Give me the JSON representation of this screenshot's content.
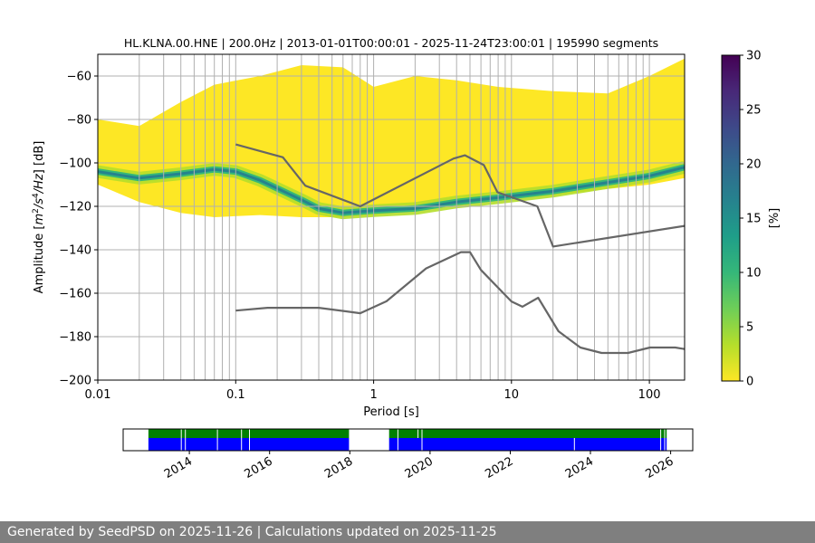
{
  "chart_data": [
    {
      "type": "heatmap",
      "subtype": "probabilistic-power-spectral-density",
      "title": "HL.KLNA.00.HNE | 200.0Hz | 2013-01-01T00:00:01 - 2025-11-24T23:00:01 | 195990 segments",
      "xlabel": "Period [s]",
      "ylabel_parts": [
        "Amplitude [",
        "m",
        "2",
        "/",
        "s",
        "4",
        "/",
        "Hz",
        "] [dB]"
      ],
      "xscale": "log",
      "xlim": [
        0.01,
        180
      ],
      "ylim": [
        -200,
        -50
      ],
      "x_ticks": [
        0.01,
        0.1,
        1,
        10,
        100
      ],
      "x_tick_labels": [
        "0.01",
        "0.1",
        "1",
        "10",
        "100"
      ],
      "y_ticks": [
        -200,
        -180,
        -160,
        -140,
        -120,
        -100,
        -80,
        -60
      ],
      "y_tick_labels": [
        "−200",
        "−180",
        "−160",
        "−140",
        "−120",
        "−100",
        "−80",
        "−60"
      ],
      "grid": true,
      "density_bands": [
        {
          "name": "upper-envelope",
          "x": [
            0.01,
            0.02,
            0.04,
            0.07,
            0.15,
            0.3,
            0.6,
            1,
            2,
            4,
            8,
            20,
            50,
            100,
            180
          ],
          "y": [
            -80,
            -83,
            -72,
            -64,
            -60,
            -55,
            -56,
            -65,
            -60,
            -62,
            -65,
            -67,
            -68,
            -60,
            -52
          ]
        },
        {
          "name": "lower-envelope",
          "x": [
            0.01,
            0.02,
            0.04,
            0.07,
            0.15,
            0.3,
            0.6,
            1,
            2,
            4,
            8,
            20,
            50,
            100,
            180
          ],
          "y": [
            -110,
            -118,
            -123,
            -125,
            -124,
            -125,
            -125,
            -124,
            -122,
            -120,
            -117,
            -115,
            -112,
            -110,
            -107
          ]
        },
        {
          "name": "mode",
          "x": [
            0.01,
            0.02,
            0.04,
            0.07,
            0.1,
            0.15,
            0.3,
            0.4,
            0.6,
            1,
            2,
            4,
            8,
            20,
            50,
            100,
            180
          ],
          "y": [
            -104,
            -107,
            -105,
            -103,
            -104,
            -108,
            -117,
            -121,
            -123,
            -122,
            -121,
            -118,
            -116,
            -113,
            -109,
            -106,
            -102
          ]
        }
      ],
      "series": [
        {
          "name": "noise-model-high",
          "x": [
            0.1,
            0.22,
            0.32,
            0.8,
            3.8,
            4.6,
            6.3,
            7.9,
            15.4,
            20,
            180
          ],
          "y": [
            -91.5,
            -97.4,
            -110.5,
            -120,
            -98,
            -96.5,
            -101,
            -113.5,
            -120,
            -138.5,
            -129
          ]
        },
        {
          "name": "noise-model-low",
          "x": [
            0.1,
            0.17,
            0.4,
            0.8,
            1.24,
            2.4,
            4.3,
            5,
            6,
            10,
            12,
            15.6,
            21.9,
            31.6,
            45,
            70,
            101,
            154,
            180
          ],
          "y": [
            -168,
            -166.7,
            -166.7,
            -169.2,
            -163.7,
            -148.6,
            -141.1,
            -141.1,
            -149.3,
            -163.8,
            -166.2,
            -162.1,
            -177.5,
            -185,
            -187.5,
            -187.5,
            -185,
            -185,
            -185.7
          ]
        }
      ]
    },
    {
      "type": "heatmap",
      "subtype": "colorbar",
      "label": "[%]",
      "range": [
        0,
        30
      ],
      "ticks": [
        0,
        5,
        10,
        15,
        20,
        25,
        30
      ],
      "tick_labels": [
        "0",
        "5",
        "10",
        "15",
        "20",
        "25",
        "30"
      ],
      "colormap_stops": [
        "#fde725",
        "#b5de2b",
        "#6ece58",
        "#35b779",
        "#1f9e89",
        "#26828e",
        "#31688e",
        "#3e4989",
        "#482878",
        "#440154"
      ]
    },
    {
      "type": "timeline",
      "subtype": "data-availability",
      "xlim": [
        2012.35,
        2026.55
      ],
      "tick_years": [
        "2014",
        "2016",
        "2018",
        "2020",
        "2022",
        "2024",
        "2026"
      ],
      "tick_values": [
        2014,
        2016,
        2018,
        2020,
        2022,
        2024,
        2026
      ],
      "coverage_segments": [
        [
          2012.98,
          2017.98
        ],
        [
          2018.98,
          2025.9
        ]
      ],
      "top_row_color": "#008000",
      "bottom_row_color": "#0000ff",
      "gap_lines_top": [
        2013.8,
        2013.9,
        2014.7,
        2015.3,
        2015.5,
        2019.2,
        2019.7,
        2019.8,
        2025.75,
        2025.85
      ],
      "gap_lines_bottom": [
        2013.8,
        2013.9,
        2014.7,
        2015.3,
        2015.5,
        2019.2,
        2019.8,
        2023.6,
        2025.75,
        2025.85
      ]
    }
  ],
  "footer": {
    "text": "Generated by SeedPSD on 2025-11-26 | Calculations updated on 2025-11-25"
  }
}
